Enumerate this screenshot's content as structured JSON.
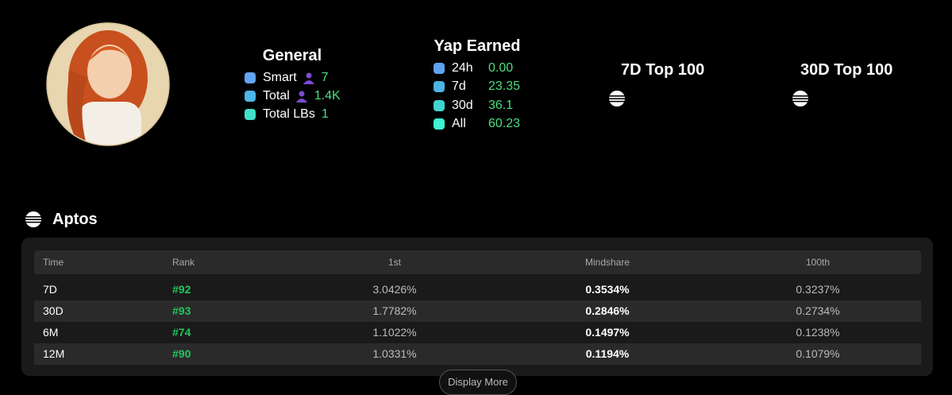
{
  "general": {
    "title": "General",
    "items": [
      {
        "label": "Smart",
        "value": "7",
        "icon": true,
        "color": "#62a4f0"
      },
      {
        "label": "Total",
        "value": "1.4K",
        "icon": true,
        "color": "#4cb6e6"
      },
      {
        "label": "Total LBs",
        "value": "1",
        "icon": false,
        "color": "#40e0cc"
      }
    ]
  },
  "yap": {
    "title": "Yap Earned",
    "items": [
      {
        "label": "24h",
        "value": "0.00",
        "color": "#5fa2f0"
      },
      {
        "label": "7d",
        "value": "23.35",
        "color": "#4cb4e6"
      },
      {
        "label": "30d",
        "value": "36.1",
        "color": "#3fd6d2"
      },
      {
        "label": "All",
        "value": "60.23",
        "color": "#3ef2d4"
      }
    ]
  },
  "tops": [
    {
      "title": "7D Top 100"
    },
    {
      "title": "30D Top 100"
    }
  ],
  "section": {
    "title": "Aptos"
  },
  "table": {
    "header": [
      "Time",
      "Rank",
      "1st",
      "Mindshare",
      "100th"
    ],
    "rows": [
      [
        "7D",
        "#92",
        "3.0426%",
        "0.3534%",
        "0.3237%"
      ],
      [
        "30D",
        "#93",
        "1.7782%",
        "0.2846%",
        "0.2734%"
      ],
      [
        "6M",
        "#74",
        "1.1022%",
        "0.1497%",
        "0.1238%"
      ],
      [
        "12M",
        "#90",
        "1.0331%",
        "0.1194%",
        "0.1079%"
      ]
    ]
  },
  "button": "Display More"
}
